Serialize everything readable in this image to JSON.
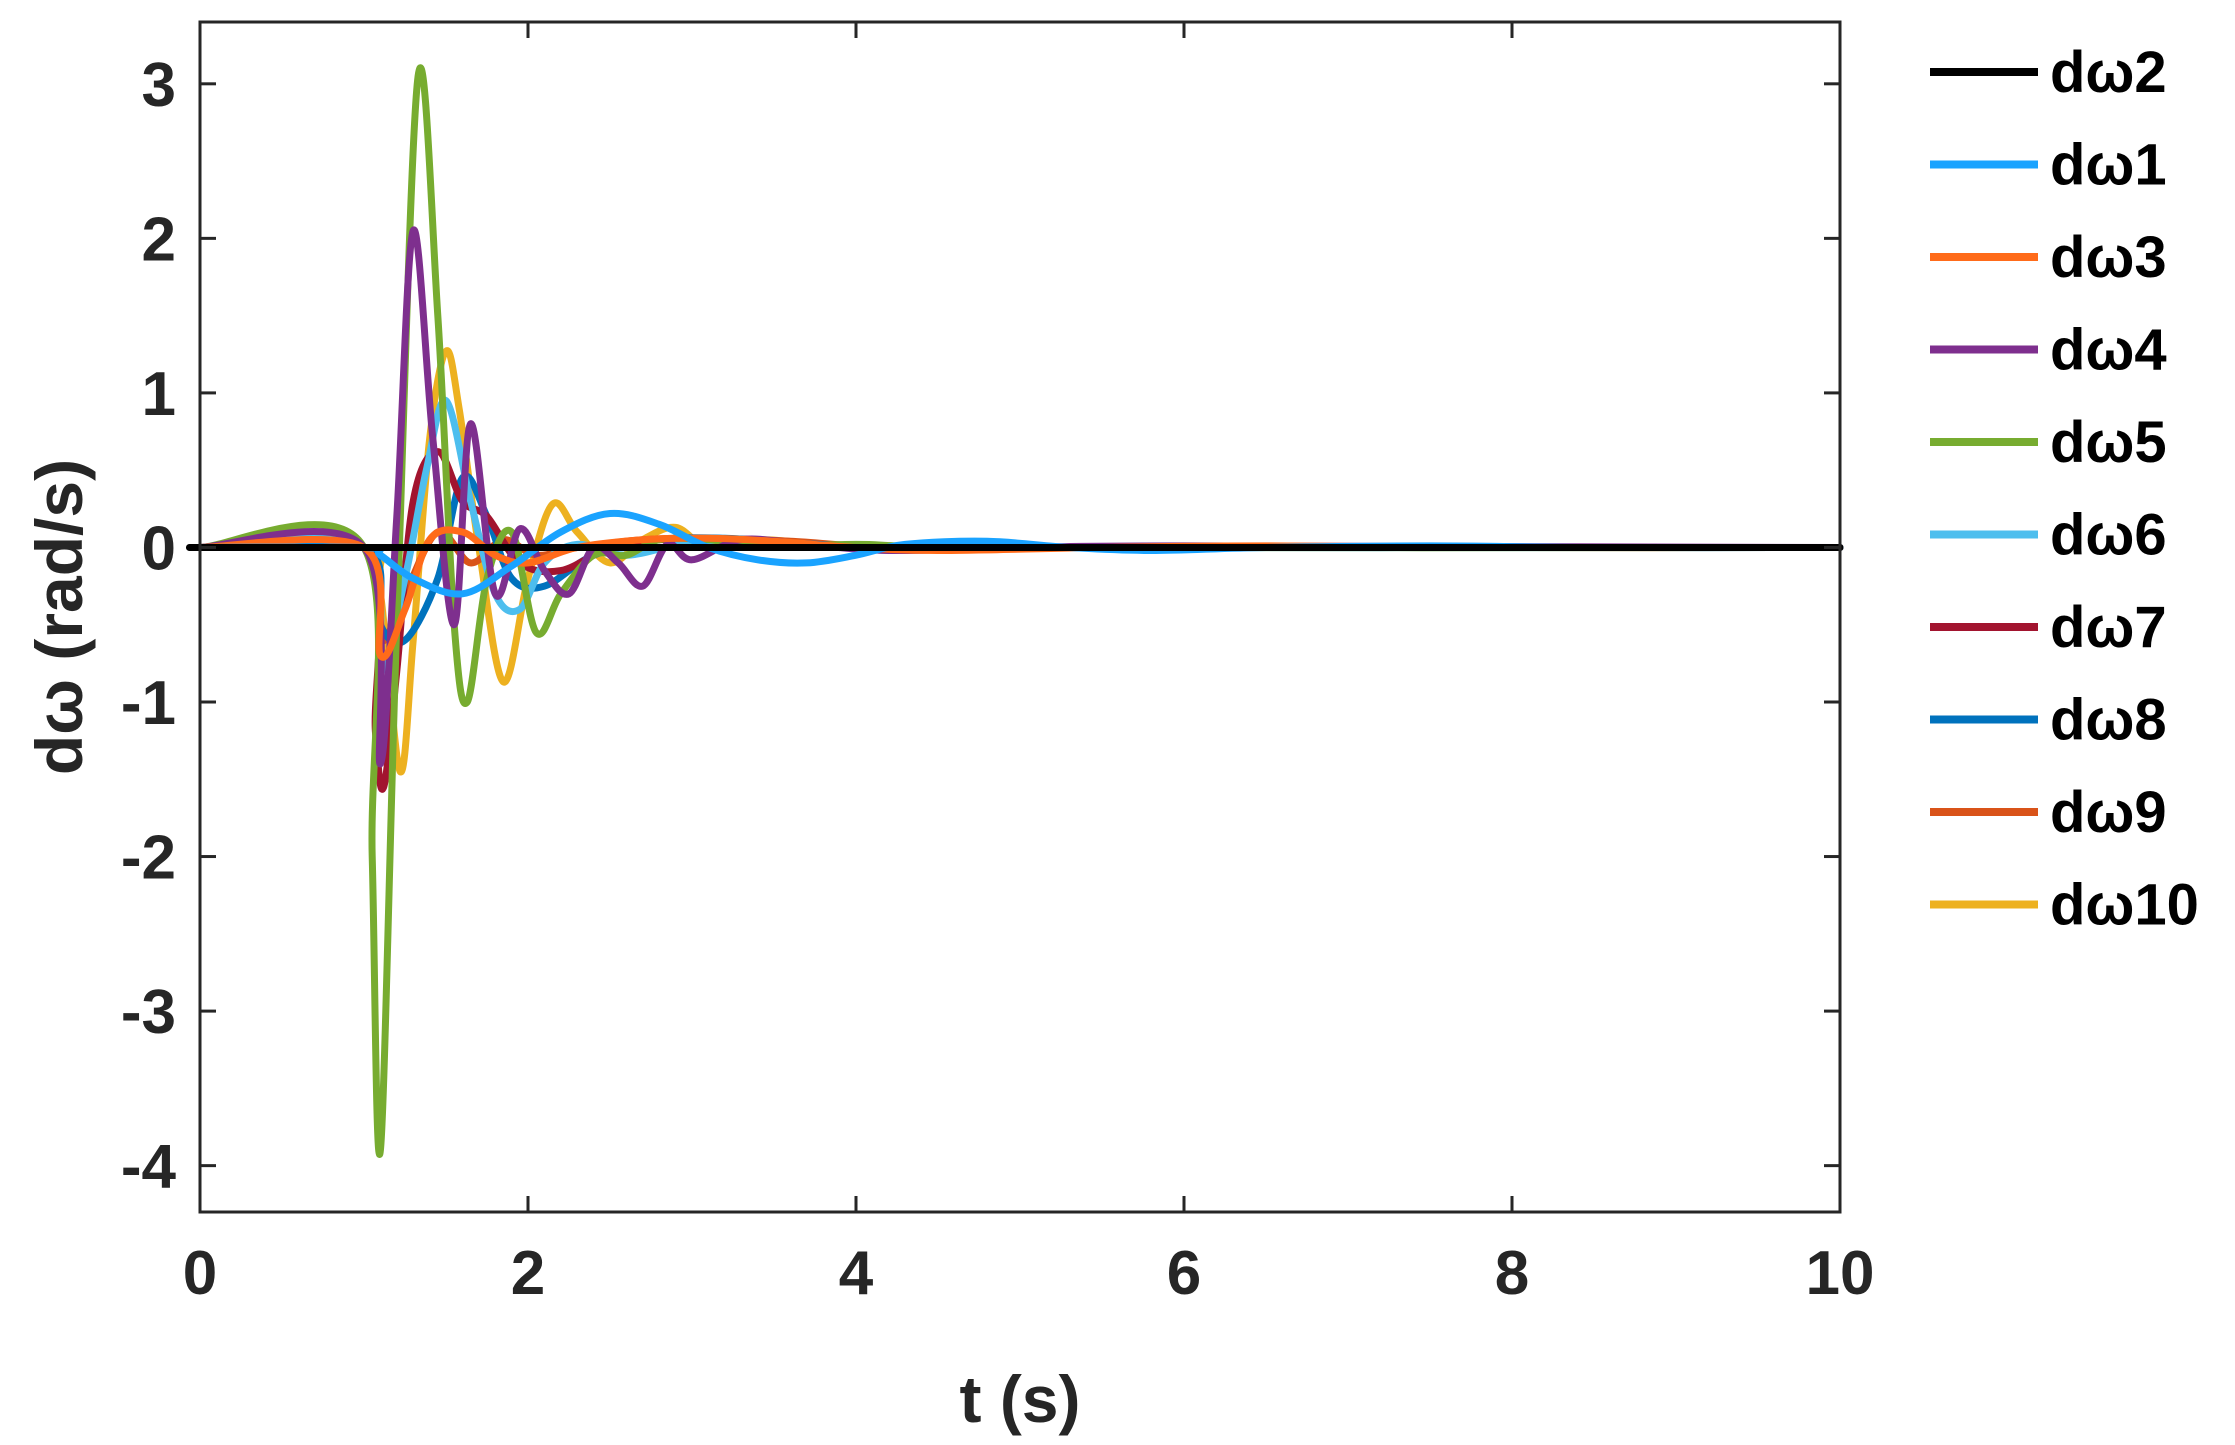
{
  "chart_data": {
    "type": "line",
    "xlabel": "t (s)",
    "ylabel": "dω (rad/s)",
    "xlim": [
      0,
      10
    ],
    "ylim": [
      -4.3,
      3.4
    ],
    "xticks": [
      0,
      2,
      4,
      6,
      8,
      10
    ],
    "yticks": [
      -4,
      -3,
      -2,
      -1,
      0,
      1,
      2,
      3
    ],
    "grid": false,
    "legend_position": "outside-right",
    "series": [
      {
        "name": "dω2",
        "color": "#000000",
        "x": [
          0,
          1.0,
          10
        ],
        "y": [
          0,
          0,
          0
        ]
      },
      {
        "name": "dω1",
        "color": "#1aa3ff",
        "x": [
          0,
          1.0,
          1.1,
          1.3,
          1.6,
          1.9,
          2.2,
          2.5,
          2.8,
          3.1,
          3.4,
          3.7,
          4.0,
          4.3,
          4.8,
          5.3,
          5.8,
          6.5,
          7.5,
          8.5,
          10
        ],
        "y": [
          0,
          0,
          -0.05,
          -0.2,
          -0.3,
          -0.12,
          0.1,
          0.22,
          0.15,
          0.0,
          -0.08,
          -0.1,
          -0.05,
          0.02,
          0.04,
          0.0,
          -0.02,
          0.0,
          0.01,
          0.0,
          0
        ]
      },
      {
        "name": "dω3",
        "color": "#ff6b1a",
        "x": [
          0,
          1.0,
          1.1,
          1.25,
          1.4,
          1.6,
          1.8,
          2.0,
          2.3,
          2.7,
          3.1,
          3.5,
          4.0,
          4.5,
          5.5,
          6.5,
          8,
          10
        ],
        "y": [
          0,
          0,
          -0.7,
          -0.4,
          0.05,
          0.1,
          -0.05,
          -0.1,
          0.0,
          0.05,
          0.06,
          0.04,
          0.0,
          -0.02,
          0.0,
          0.01,
          0.0,
          0
        ]
      },
      {
        "name": "dω4",
        "color": "#7e2f8e",
        "x": [
          0,
          1.0,
          1.1,
          1.2,
          1.3,
          1.42,
          1.55,
          1.65,
          1.8,
          1.95,
          2.1,
          2.25,
          2.4,
          2.55,
          2.7,
          2.85,
          3.0,
          3.3,
          3.7,
          4.2,
          5.0,
          6.0,
          10
        ],
        "y": [
          0,
          0,
          -1.4,
          0.2,
          2.05,
          0.7,
          -0.5,
          0.8,
          -0.3,
          0.12,
          -0.15,
          -0.3,
          0.0,
          -0.1,
          -0.25,
          0.02,
          -0.08,
          0.05,
          0.02,
          -0.02,
          0.0,
          0.01,
          0
        ]
      },
      {
        "name": "dω5",
        "color": "#77ac30",
        "x": [
          0,
          1.0,
          1.05,
          1.1,
          1.2,
          1.33,
          1.45,
          1.55,
          1.63,
          1.75,
          1.9,
          2.05,
          2.2,
          2.4,
          2.6,
          2.8,
          3.1,
          3.5,
          4.0,
          5.0,
          10
        ],
        "y": [
          0,
          0,
          -2.0,
          -3.9,
          -0.5,
          3.05,
          1.5,
          -0.5,
          -1.0,
          -0.2,
          0.1,
          -0.55,
          -0.3,
          -0.05,
          -0.05,
          0.05,
          0.05,
          0.0,
          0.02,
          0.0,
          0
        ]
      },
      {
        "name": "dω6",
        "color": "#4dbeee",
        "x": [
          0,
          1.0,
          1.1,
          1.25,
          1.38,
          1.5,
          1.65,
          1.8,
          1.95,
          2.1,
          2.3,
          2.6,
          3.0,
          3.5,
          4.5,
          10
        ],
        "y": [
          0,
          0,
          -0.8,
          -0.2,
          0.5,
          0.95,
          0.3,
          -0.3,
          -0.4,
          -0.1,
          0.02,
          -0.05,
          0.03,
          0.02,
          0.0,
          0
        ]
      },
      {
        "name": "dω7",
        "color": "#a2142f",
        "x": [
          0,
          1.0,
          1.07,
          1.12,
          1.2,
          1.3,
          1.45,
          1.6,
          1.75,
          1.95,
          2.2,
          2.5,
          2.8,
          3.1,
          3.5,
          4.0,
          5.0,
          10
        ],
        "y": [
          0,
          0,
          -1.2,
          -1.55,
          -0.8,
          0.3,
          0.62,
          0.3,
          0.2,
          -0.1,
          -0.15,
          0.0,
          0.05,
          0.05,
          0.03,
          0.0,
          0.0,
          0
        ]
      },
      {
        "name": "dω8",
        "color": "#0072bd",
        "x": [
          0,
          1.0,
          1.1,
          1.25,
          1.45,
          1.6,
          1.75,
          1.9,
          2.1,
          2.4,
          2.8,
          3.2,
          3.6,
          4.2,
          5.0,
          10
        ],
        "y": [
          0,
          0,
          -0.5,
          -0.6,
          -0.2,
          0.45,
          0.2,
          -0.2,
          -0.25,
          -0.05,
          0.05,
          0.06,
          0.03,
          0.0,
          0.0,
          0
        ]
      },
      {
        "name": "dω9",
        "color": "#d95319",
        "x": [
          0,
          1.0,
          1.1,
          1.25,
          1.45,
          1.65,
          1.85,
          2.05,
          2.3,
          2.7,
          3.1,
          3.6,
          4.2,
          5.0,
          10
        ],
        "y": [
          0,
          0,
          -0.6,
          -0.3,
          0.1,
          -0.1,
          0.05,
          -0.05,
          0.0,
          0.05,
          0.06,
          0.04,
          0.0,
          0.0,
          0
        ]
      },
      {
        "name": "dω10",
        "color": "#edb120",
        "x": [
          0,
          1.0,
          1.1,
          1.22,
          1.3,
          1.4,
          1.5,
          1.58,
          1.7,
          1.85,
          2.0,
          2.15,
          2.3,
          2.5,
          2.7,
          2.9,
          3.1,
          3.4,
          3.8,
          4.3,
          5.0,
          10
        ],
        "y": [
          0,
          0,
          -0.3,
          -1.45,
          -0.6,
          0.7,
          1.27,
          0.9,
          0.0,
          -0.87,
          -0.2,
          0.28,
          0.1,
          -0.1,
          0.05,
          0.13,
          0.0,
          0.05,
          0.02,
          0.0,
          0.0,
          0
        ]
      }
    ]
  }
}
